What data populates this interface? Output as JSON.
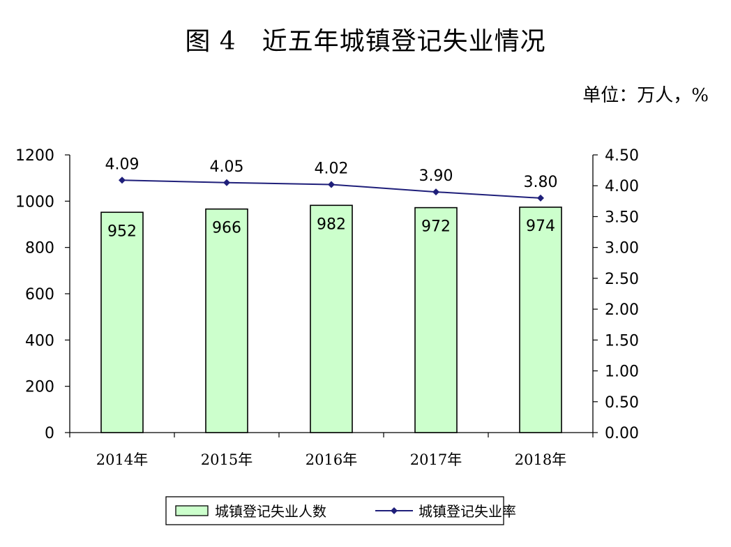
{
  "title": "图 4　近五年城镇登记失业情况",
  "unit_label": "单位：万人，%",
  "chart_data": {
    "type": "bar+line",
    "categories": [
      "2014年",
      "2015年",
      "2016年",
      "2017年",
      "2018年"
    ],
    "series": [
      {
        "name": "城镇登记失业人数",
        "type": "bar",
        "axis": "left",
        "values": [
          952,
          966,
          982,
          972,
          974
        ],
        "color": "#ccffcc"
      },
      {
        "name": "城镇登记失业率",
        "type": "line",
        "axis": "right",
        "values": [
          4.09,
          4.05,
          4.02,
          3.9,
          3.8
        ],
        "labels": [
          "4.09",
          "4.05",
          "4.02",
          "3.90",
          "3.80"
        ],
        "color": "#1f1f7a"
      }
    ],
    "y_left": {
      "range": [
        0,
        1200
      ],
      "ticks": [
        "0",
        "200",
        "400",
        "600",
        "800",
        "1000",
        "1200"
      ]
    },
    "y_right": {
      "range": [
        0,
        4.5
      ],
      "ticks": [
        "0.00",
        "0.50",
        "1.00",
        "1.50",
        "2.00",
        "2.50",
        "3.00",
        "3.50",
        "4.00",
        "4.50"
      ]
    },
    "legend_position": "bottom",
    "grid": false
  }
}
